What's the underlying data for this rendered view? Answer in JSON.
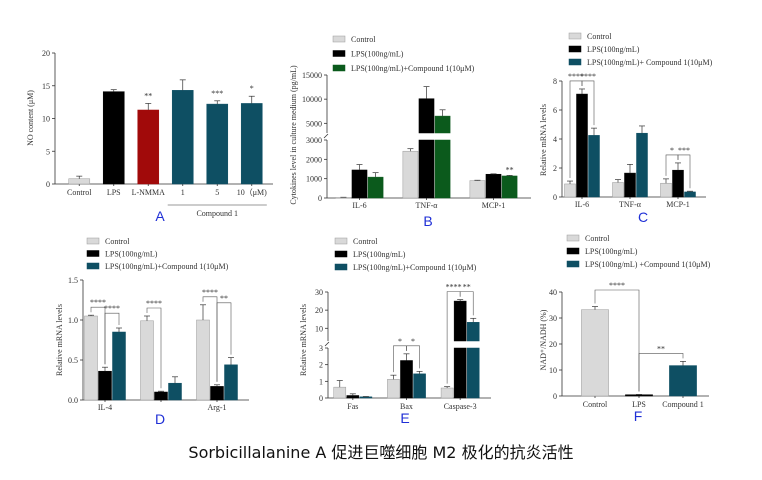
{
  "caption": "Sorbicillalanine A 促进巨噬细胞 M2 极化的抗炎活性",
  "chart_data": [
    {
      "id": "A",
      "type": "bar",
      "letter": "A",
      "ylabel": "NO content (μM)",
      "ylim": [
        0,
        20
      ],
      "yticks": [
        "0",
        "5",
        "10",
        "15",
        "20"
      ],
      "categories": [
        "Control",
        "LPS",
        "L-NMMA",
        "1",
        "5",
        "10（μM)"
      ],
      "group_label": "Compound 1",
      "series": [
        {
          "name": "NO",
          "values": [
            0.8,
            14.1,
            11.3,
            14.3,
            12.2,
            12.3
          ],
          "errors": [
            0.4,
            0.3,
            1.0,
            1.6,
            0.5,
            1.1
          ],
          "colors": [
            "#d9d9d9",
            "#000000",
            "#a10a0a",
            "#0e4f63",
            "#0e4f63",
            "#0e4f63"
          ]
        }
      ],
      "sig": [
        "",
        "",
        "**",
        "",
        "***",
        "*"
      ]
    },
    {
      "id": "B",
      "type": "bar",
      "letter": "B",
      "ylabel": "Cytokines level in culture medium (pg/mL)",
      "ylim": [
        0,
        15000
      ],
      "yticks": [
        "0",
        "1000",
        "2000",
        "3000",
        "5000",
        "10000",
        "15000"
      ],
      "categories": [
        "IL-6",
        "TNF-α",
        "MCP-1"
      ],
      "series": [
        {
          "name": "Control",
          "color": "#d9d9d9",
          "values": [
            30,
            2420,
            900
          ],
          "errors": [
            10,
            130,
            20
          ]
        },
        {
          "name": "LPS(100ng/mL)",
          "color": "#000000",
          "values": [
            1450,
            10100,
            1230
          ],
          "errors": [
            280,
            2500,
            20
          ]
        },
        {
          "name": "LPS(100ng/mL)+Compound 1(10μM)",
          "color": "#0b5a1c",
          "values": [
            1080,
            6500,
            1140
          ],
          "errors": [
            230,
            1300,
            30
          ]
        }
      ],
      "sig_points": [
        {
          "cat": 2,
          "series": 2,
          "label": "**"
        }
      ]
    },
    {
      "id": "C",
      "type": "bar",
      "letter": "C",
      "ylabel": "Relative mRNA levels",
      "ylim": [
        0,
        8
      ],
      "yticks": [
        "0",
        "2",
        "4",
        "6",
        "8"
      ],
      "categories": [
        "IL-6",
        "TNF-α",
        "MCP-1"
      ],
      "series": [
        {
          "name": "Control",
          "color": "#d9d9d9",
          "values": [
            0.9,
            1.0,
            0.95
          ],
          "errors": [
            0.2,
            0.2,
            0.3
          ]
        },
        {
          "name": "LPS(100ng/mL)",
          "color": "#000000",
          "values": [
            7.1,
            1.65,
            1.85
          ],
          "errors": [
            0.35,
            0.6,
            0.5
          ]
        },
        {
          "name": "LPS(100ng/mL)+ Compound 1(10μM)",
          "color": "#0e4f63",
          "values": [
            4.25,
            4.4,
            0.35
          ],
          "errors": [
            0.5,
            0.5,
            0.05
          ]
        }
      ],
      "brackets": [
        {
          "cat": 0,
          "from": 0,
          "to": 1,
          "label": "****"
        },
        {
          "cat": 0,
          "from": 1,
          "to": 2,
          "label": "****"
        },
        {
          "cat": 2,
          "from": 0,
          "to": 1,
          "label": "*"
        },
        {
          "cat": 2,
          "from": 1,
          "to": 2,
          "label": "***"
        }
      ]
    },
    {
      "id": "D",
      "type": "bar",
      "letter": "D",
      "ylabel": "Relative mRNA levels",
      "ylim": [
        0,
        1.5
      ],
      "yticks": [
        "0.0",
        "0.5",
        "1.0",
        "1.5"
      ],
      "categories": [
        "IL-4",
        "",
        "Arg-1"
      ],
      "series": [
        {
          "name": "Control",
          "color": "#d9d9d9",
          "values": [
            1.05,
            0.99,
            1.0
          ],
          "errors": [
            0.01,
            0.06,
            0.19
          ]
        },
        {
          "name": "LPS(100ng/mL)",
          "color": "#000000",
          "values": [
            0.36,
            0.1,
            0.17
          ],
          "errors": [
            0.05,
            0.01,
            0.02
          ]
        },
        {
          "name": "LPS(100ng/mL)+Compound 1(10μM)",
          "color": "#0e4f63",
          "values": [
            0.85,
            0.21,
            0.44
          ],
          "errors": [
            0.05,
            0.08,
            0.09
          ]
        }
      ],
      "brackets": [
        {
          "cat": 0,
          "from": 0,
          "to": 1,
          "label": "****"
        },
        {
          "cat": 0,
          "from": 1,
          "to": 2,
          "label": "****"
        },
        {
          "cat": 1,
          "from": 0,
          "to": 1,
          "label": "****"
        },
        {
          "cat": 2,
          "from": 0,
          "to": 1,
          "label": "****"
        },
        {
          "cat": 2,
          "from": 1,
          "to": 2,
          "label": "**"
        }
      ]
    },
    {
      "id": "E",
      "type": "bar",
      "letter": "E",
      "ylabel": "Relative mRNA levels",
      "ylim": [
        0,
        30
      ],
      "yticks": [
        "0",
        "1",
        "2",
        "3",
        "10",
        "20",
        "30"
      ],
      "categories": [
        "Fas",
        "Bax",
        "Caspase-3"
      ],
      "series": [
        {
          "name": "Control",
          "color": "#d9d9d9",
          "values": [
            0.65,
            1.12,
            0.6
          ],
          "errors": [
            0.4,
            0.25,
            0.08
          ]
        },
        {
          "name": "LPS(100ng/mL)",
          "color": "#000000",
          "values": [
            0.15,
            2.25,
            25.0
          ],
          "errors": [
            0.1,
            0.4,
            0.8
          ]
        },
        {
          "name": "LPS(100ng/mL)+Compound 1(10μM)",
          "color": "#0e4f63",
          "values": [
            0.07,
            1.45,
            13.3
          ],
          "errors": [
            0.02,
            0.15,
            2.2
          ]
        }
      ],
      "brackets": [
        {
          "cat": 1,
          "from": 0,
          "to": 1,
          "label": "*"
        },
        {
          "cat": 1,
          "from": 1,
          "to": 2,
          "label": "*"
        },
        {
          "cat": 2,
          "from": 0,
          "to": 1,
          "label": "****"
        },
        {
          "cat": 2,
          "from": 1,
          "to": 2,
          "label": "**"
        }
      ]
    },
    {
      "id": "F",
      "type": "bar",
      "letter": "F",
      "ylabel": "NAD⁺/NADH (%)",
      "ylim": [
        0,
        40
      ],
      "yticks": [
        "0",
        "10",
        "20",
        "30",
        "40"
      ],
      "categories": [
        "Control",
        "LPS",
        "Compound 1"
      ],
      "legend": [
        {
          "name": "Control",
          "color": "#d9d9d9"
        },
        {
          "name": "LPS(100ng/mL)",
          "color": "#000000"
        },
        {
          "name": "LPS(100ng/mL) +Compound 1(10μM)",
          "color": "#0e4f63"
        }
      ],
      "series": [
        {
          "name": "NAD+/NADH",
          "values": [
            33.2,
            0.5,
            11.7
          ],
          "errors": [
            1.2,
            0.1,
            1.6
          ],
          "colors": [
            "#d9d9d9",
            "#000000",
            "#0e4f63"
          ]
        }
      ],
      "brackets": [
        {
          "cat_from": 0,
          "cat_to": 1,
          "label": "****"
        },
        {
          "cat_from": 1,
          "cat_to": 2,
          "label": "**"
        }
      ]
    }
  ]
}
